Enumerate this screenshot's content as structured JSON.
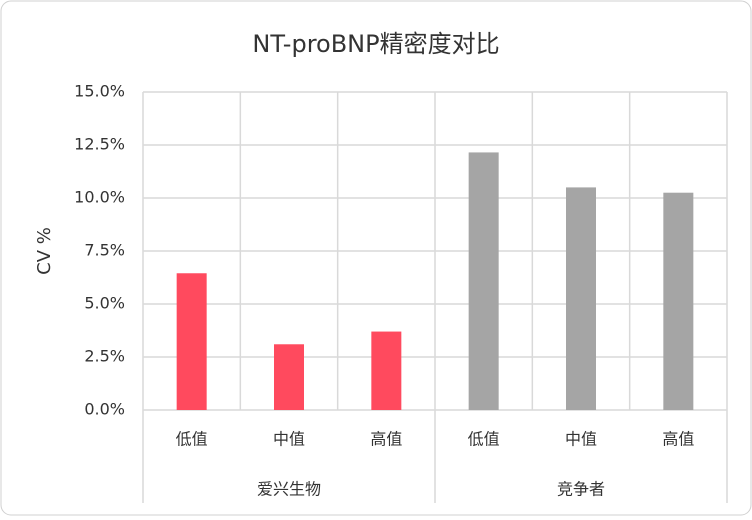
{
  "chart_data": {
    "type": "bar",
    "title": "NT-proBNP精密度对比",
    "y_label": "CV %",
    "groups": [
      {
        "name": "爱兴生物",
        "color": "#ff4a5e",
        "categories": [
          "低值",
          "中值",
          "高值"
        ],
        "values": [
          6.45,
          3.1,
          3.7
        ]
      },
      {
        "name": "竞争者",
        "color": "#a5a5a5",
        "categories": [
          "低值",
          "中值",
          "高值"
        ],
        "values": [
          12.15,
          10.5,
          10.25
        ]
      }
    ],
    "ylim": [
      0,
      15
    ],
    "yticks": [
      {
        "value": 0,
        "label": "0.0%"
      },
      {
        "value": 2.5,
        "label": "2.5%"
      },
      {
        "value": 5,
        "label": "5.0%"
      },
      {
        "value": 7.5,
        "label": "7.5%"
      },
      {
        "value": 10,
        "label": "10.0%"
      },
      {
        "value": 12.5,
        "label": "12.5%"
      },
      {
        "value": 15,
        "label": "15.0%"
      }
    ],
    "grid": true
  }
}
